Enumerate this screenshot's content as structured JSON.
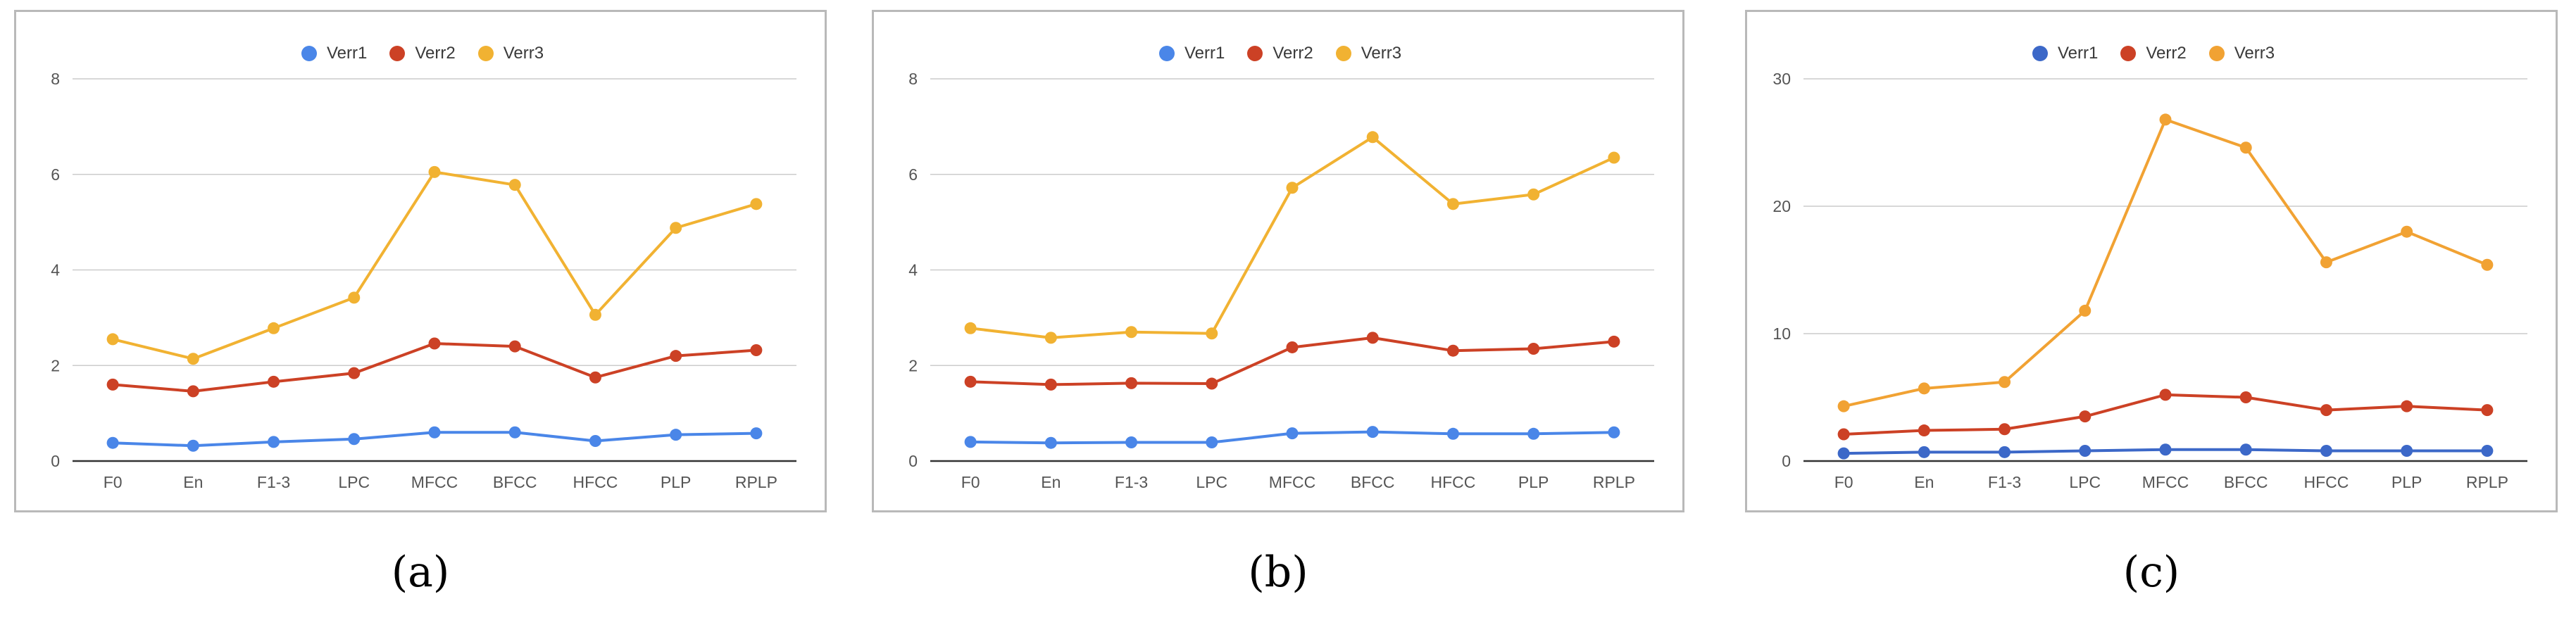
{
  "captions": [
    "(a)",
    "(b)",
    "(c)"
  ],
  "chart_data": [
    {
      "type": "line",
      "categories": [
        "F0",
        "En",
        "F1-3",
        "LPC",
        "MFCC",
        "BFCC",
        "HFCC",
        "PLP",
        "RPLP"
      ],
      "series": [
        {
          "name": "Verr1",
          "color": "#4a86e8",
          "values": [
            0.38,
            0.32,
            0.4,
            0.46,
            0.6,
            0.6,
            0.42,
            0.55,
            0.58
          ]
        },
        {
          "name": "Verr2",
          "color": "#cc4125",
          "values": [
            1.6,
            1.46,
            1.66,
            1.84,
            2.46,
            2.4,
            1.75,
            2.2,
            2.32
          ]
        },
        {
          "name": "Verr3",
          "color": "#f1b232",
          "values": [
            2.55,
            2.14,
            2.78,
            3.42,
            6.05,
            5.78,
            3.06,
            4.88,
            5.38
          ]
        }
      ],
      "yticks": [
        0,
        2,
        4,
        6,
        8
      ],
      "ylim": [
        0,
        8
      ],
      "grid": true,
      "legend": "top-center"
    },
    {
      "type": "line",
      "categories": [
        "F0",
        "En",
        "F1-3",
        "LPC",
        "MFCC",
        "BFCC",
        "HFCC",
        "PLP",
        "RPLP"
      ],
      "series": [
        {
          "name": "Verr1",
          "color": "#4a86e8",
          "values": [
            0.4,
            0.38,
            0.39,
            0.39,
            0.58,
            0.61,
            0.57,
            0.57,
            0.6
          ]
        },
        {
          "name": "Verr2",
          "color": "#cc4125",
          "values": [
            1.66,
            1.6,
            1.63,
            1.62,
            2.38,
            2.58,
            2.31,
            2.35,
            2.5
          ]
        },
        {
          "name": "Verr3",
          "color": "#f1b232",
          "values": [
            2.78,
            2.58,
            2.7,
            2.67,
            5.72,
            6.78,
            5.38,
            5.58,
            6.35
          ]
        }
      ],
      "yticks": [
        0,
        2,
        4,
        6,
        8
      ],
      "ylim": [
        0,
        8
      ],
      "grid": true,
      "legend": "top-center"
    },
    {
      "type": "line",
      "categories": [
        "F0",
        "En",
        "F1-3",
        "LPC",
        "MFCC",
        "BFCC",
        "HFCC",
        "PLP",
        "RPLP"
      ],
      "series": [
        {
          "name": "Verr1",
          "color": "#3c68c8",
          "values": [
            0.6,
            0.7,
            0.7,
            0.8,
            0.9,
            0.9,
            0.8,
            0.8,
            0.8
          ]
        },
        {
          "name": "Verr2",
          "color": "#cc4125",
          "values": [
            2.1,
            2.4,
            2.5,
            3.5,
            5.2,
            5.0,
            4.0,
            4.3,
            4.0
          ]
        },
        {
          "name": "Verr3",
          "color": "#f1a233",
          "values": [
            4.3,
            5.7,
            6.2,
            11.8,
            26.8,
            24.6,
            15.6,
            18.0,
            15.4
          ]
        }
      ],
      "yticks": [
        0,
        10,
        20,
        30
      ],
      "ylim": [
        0,
        30
      ],
      "grid": true,
      "legend": "top-center"
    }
  ]
}
